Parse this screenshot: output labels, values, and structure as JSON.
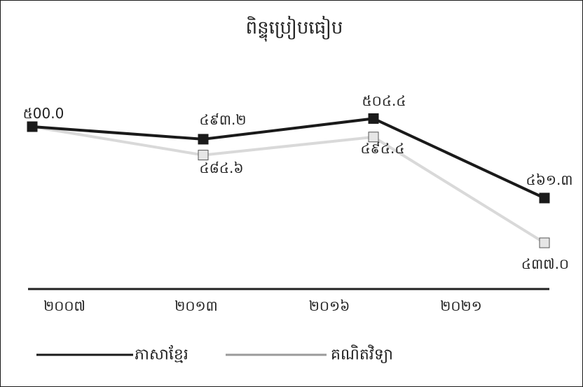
{
  "chart_data": {
    "type": "line",
    "title": "ពិន្ទុប្រៀបធៀប",
    "categories": [
      "២០០៧",
      "២០១៣",
      "២០១៦",
      "២០២១"
    ],
    "series": [
      {
        "name": "ភាសាខ្មែរ",
        "color": "#1a1a1a",
        "marker": "filled-square",
        "values": [
          500.0,
          493.2,
          504.4,
          461.3
        ],
        "labels": [
          "៥00.0",
          "៤៩៣.២",
          "៥០៤.៤",
          "៤៦១.៣"
        ]
      },
      {
        "name": "គណិតវិទ្យា",
        "color": "#d9d9d9",
        "marker": "open-square",
        "values": [
          500.0,
          484.6,
          494.4,
          437.0
        ],
        "labels": [
          "",
          "៤៨៤.៦",
          "៤៩៤.៤",
          "៤៣៧.០"
        ]
      }
    ],
    "legend_position": "bottom-left",
    "grid": false
  }
}
